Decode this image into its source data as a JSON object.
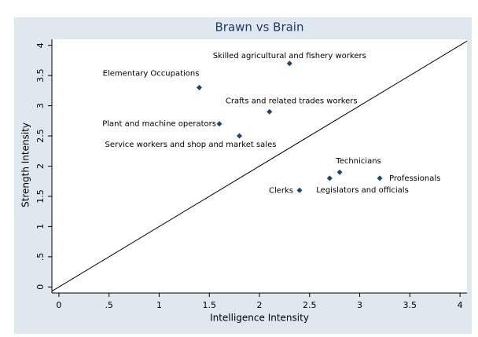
{
  "chart_data": {
    "type": "scatter",
    "title": "Brawn vs Brain",
    "x_label": "Intelligence Intensity",
    "y_label": "Strength Intensity",
    "points": [
      {
        "label": "Skilled agricultural and fishery workers",
        "x": 2.3,
        "y": 3.7
      },
      {
        "label": "Elementary Occupations",
        "x": 1.4,
        "y": 3.3
      },
      {
        "label": "Crafts and related trades workers",
        "x": 2.1,
        "y": 2.9
      },
      {
        "label": "Plant and machine operators",
        "x": 1.6,
        "y": 2.7
      },
      {
        "label": "Service workers and shop and market sales",
        "x": 1.8,
        "y": 2.5
      },
      {
        "label": "Technicians",
        "x": 2.8,
        "y": 1.9
      },
      {
        "label": "Legislators and officials",
        "x": 2.7,
        "y": 1.8
      },
      {
        "label": "Professionals",
        "x": 3.2,
        "y": 1.8
      },
      {
        "label": "Clerks",
        "x": 2.4,
        "y": 1.6
      }
    ],
    "color": "#1a476f",
    "xlim": [
      -0.07,
      4.07
    ],
    "ylim": [
      -0.1,
      4.1
    ],
    "xticks": [
      0,
      {
        "value": 0.5,
        "label": ".5"
      },
      1,
      1.5,
      2,
      2.5,
      3,
      3.5,
      4
    ],
    "yticks": [
      0,
      {
        "value": 0.5,
        "label": ".5"
      },
      1,
      1.5,
      2,
      2.5,
      3,
      3.5,
      4
    ]
  }
}
